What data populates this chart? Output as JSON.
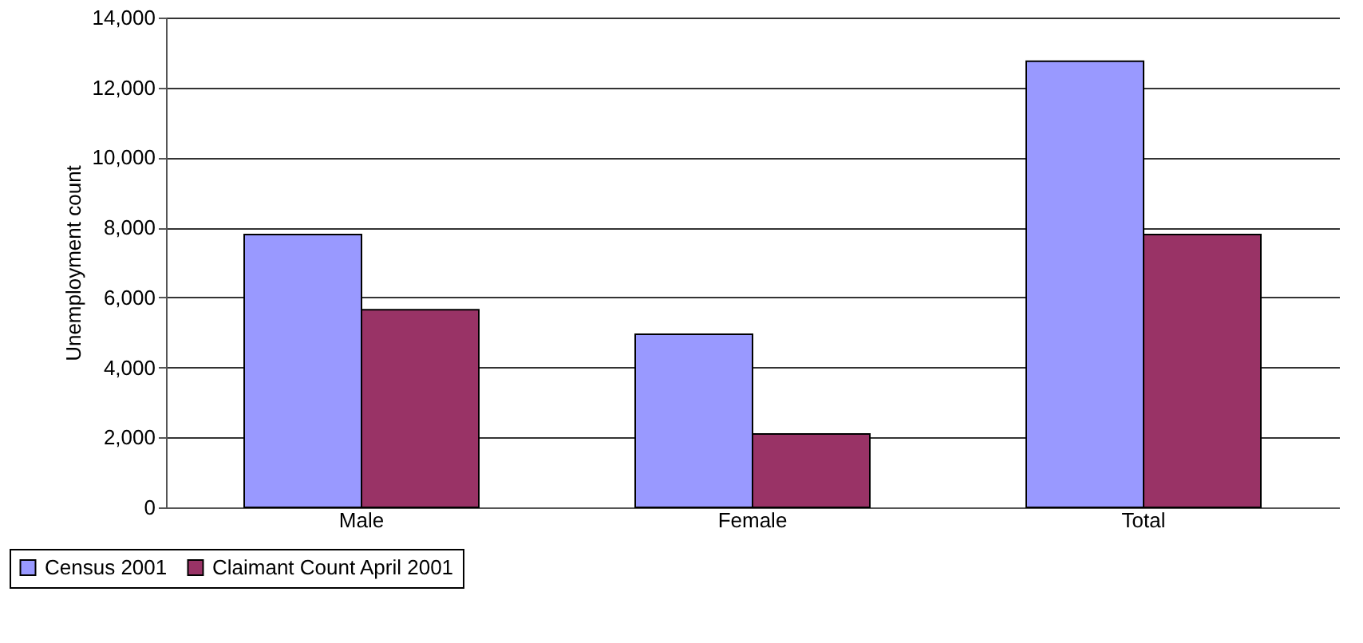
{
  "chart_data": {
    "type": "bar",
    "ylabel": "Unemployment count",
    "categories": [
      "Male",
      "Female",
      "Total"
    ],
    "series": [
      {
        "name": "Census 2001",
        "color": "#9999ff",
        "values": [
          7800,
          4950,
          12750
        ]
      },
      {
        "name": "Claimant Count April 2001",
        "color": "#993366",
        "values": [
          5650,
          2100,
          7800
        ]
      }
    ],
    "ylim": [
      0,
      14000
    ],
    "yticks": [
      0,
      {
        "value": 2000,
        "label": "2,000"
      },
      {
        "value": 4000,
        "label": "4,000"
      },
      {
        "value": 6000,
        "label": "6,000"
      },
      {
        "value": 8000,
        "label": "8,000"
      },
      {
        "value": 10000,
        "label": "10,000"
      },
      {
        "value": 12000,
        "label": "12,000"
      },
      {
        "value": 14000,
        "label": "14,000"
      }
    ],
    "grid": "y",
    "legend": "bottom left"
  }
}
